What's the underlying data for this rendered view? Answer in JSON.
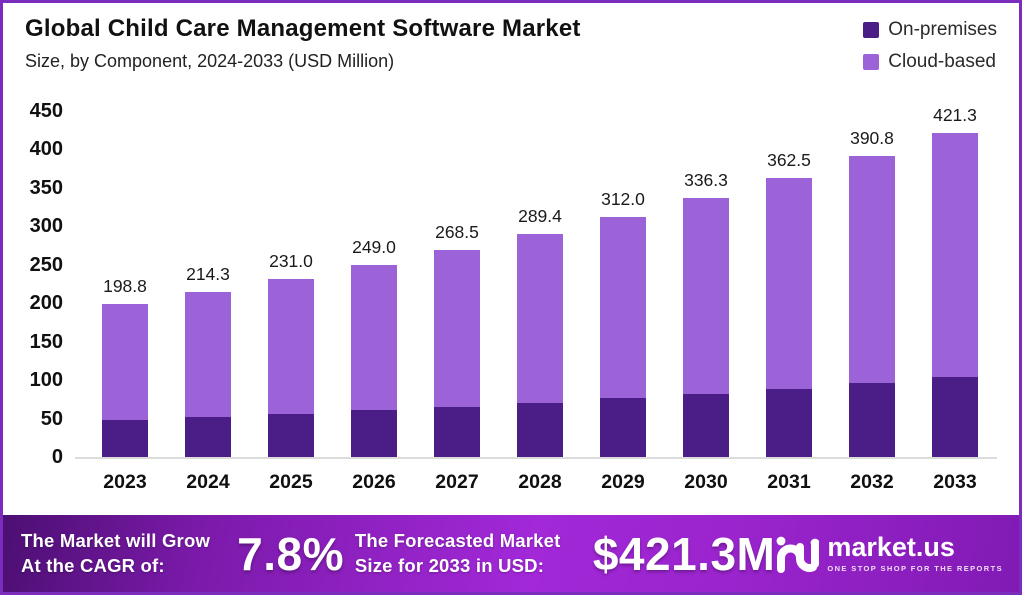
{
  "header": {
    "title": "Global Child Care Management Software Market",
    "subtitle": "Size, by Component, 2024-2033 (USD Million)"
  },
  "legend": [
    {
      "label": "On-premises",
      "color": "#4b1e87"
    },
    {
      "label": "Cloud-based",
      "color": "#9c63d8"
    }
  ],
  "chart_data": {
    "type": "bar",
    "stacked": true,
    "title": "Global Child Care Management Software Market Size, by Component, 2024-2033 (USD Million)",
    "categories": [
      "2023",
      "2024",
      "2025",
      "2026",
      "2027",
      "2028",
      "2029",
      "2030",
      "2031",
      "2032",
      "2033"
    ],
    "series": [
      {
        "name": "On-premises",
        "color": "#4b1e87",
        "values": [
          48.0,
          51.8,
          56.0,
          60.5,
          65.3,
          70.5,
          76.2,
          82.3,
          88.8,
          95.9,
          103.6
        ]
      },
      {
        "name": "Cloud-based",
        "color": "#9c63d8",
        "values": [
          150.8,
          162.5,
          175.0,
          188.5,
          203.2,
          218.9,
          235.8,
          254.0,
          273.7,
          294.9,
          317.7
        ]
      }
    ],
    "totals": [
      198.8,
      214.3,
      231.0,
      249.0,
      268.5,
      289.4,
      312.0,
      336.3,
      362.5,
      390.8,
      421.3
    ],
    "total_labels": [
      "198.8",
      "214.3",
      "231.0",
      "249.0",
      "268.5",
      "289.4",
      "312.0",
      "336.3",
      "362.5",
      "390.8",
      "421.3"
    ],
    "xlabel": "",
    "ylabel": "",
    "ylim": [
      0,
      450
    ],
    "ytick_step": 50,
    "grid": false,
    "legend_position": "top-right"
  },
  "footer": {
    "cagr_label_line1": "The Market will Grow",
    "cagr_label_line2": "At the CAGR of:",
    "cagr_value": "7.8%",
    "forecast_label_line1": "The Forecasted Market",
    "forecast_label_line2": "Size for 2033 in USD:",
    "forecast_value": "$421.3M",
    "brand": {
      "name": "market.us",
      "tagline": "ONE STOP SHOP FOR THE REPORTS"
    }
  },
  "colors": {
    "frame_border": "#7a2dbd",
    "on_premises": "#4b1e87",
    "cloud_based": "#9c63d8",
    "footer_gradient_start": "#4c0f72",
    "footer_gradient_mid": "#a228d8",
    "footer_gradient_end": "#811ab4",
    "axis_line": "#dcdcdc",
    "text": "#111111"
  }
}
